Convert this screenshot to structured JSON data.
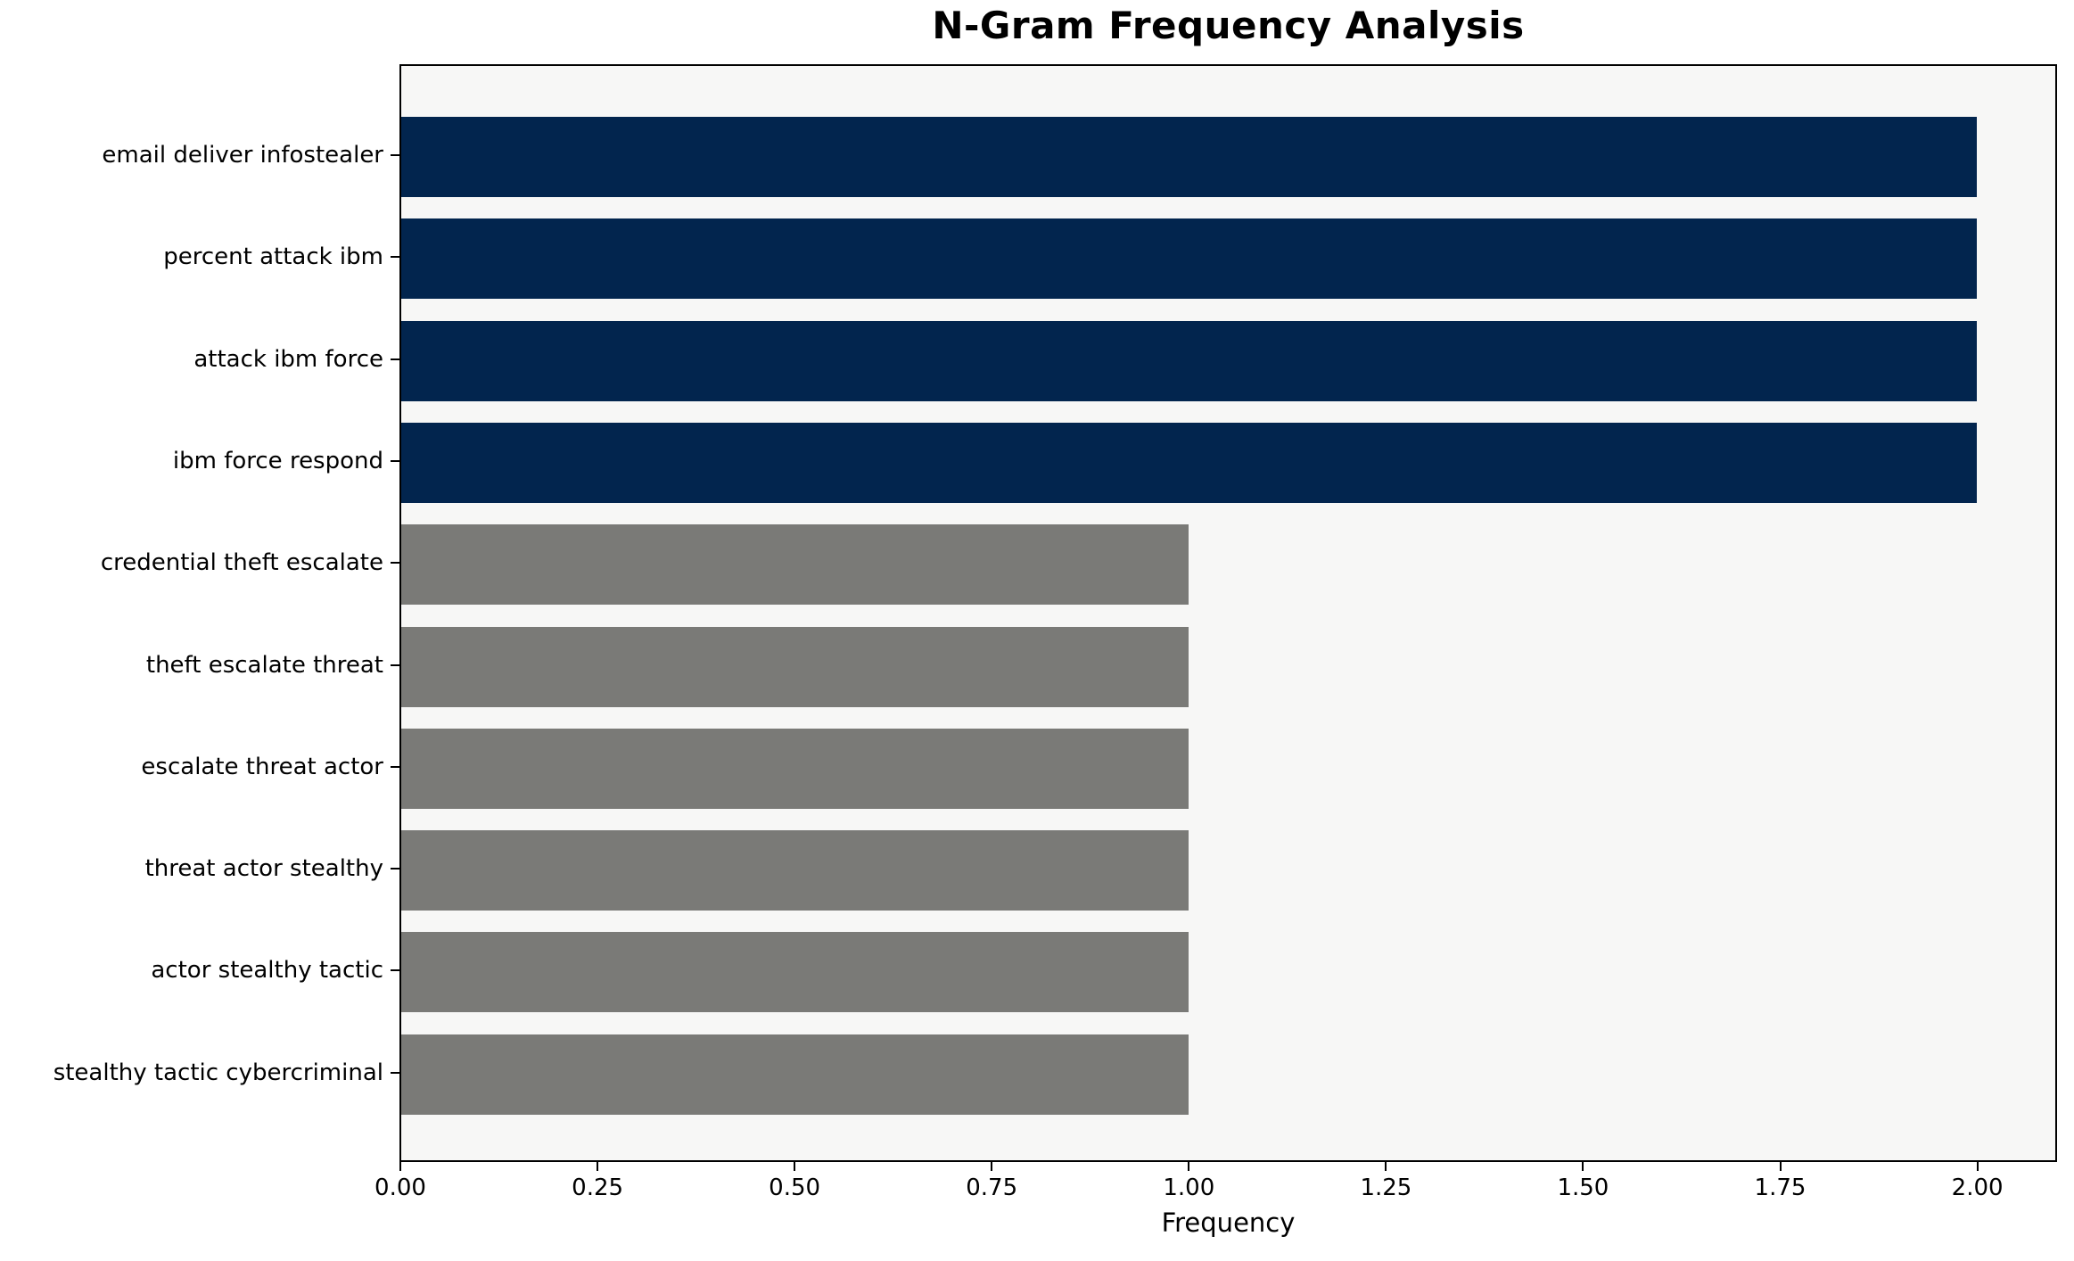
{
  "chart_data": {
    "type": "bar",
    "orientation": "horizontal",
    "title": "N-Gram Frequency Analysis",
    "xlabel": "Frequency",
    "ylabel": "",
    "categories": [
      "email deliver infostealer",
      "percent attack ibm",
      "attack ibm force",
      "ibm force respond",
      "credential theft escalate",
      "theft escalate threat",
      "escalate threat actor",
      "threat actor stealthy",
      "actor stealthy tactic",
      "stealthy tactic cybercriminal"
    ],
    "values": [
      2,
      2,
      2,
      2,
      1,
      1,
      1,
      1,
      1,
      1
    ],
    "bar_colors": [
      "#02254e",
      "#02254e",
      "#02254e",
      "#02254e",
      "#7a7a77",
      "#7a7a77",
      "#7a7a77",
      "#7a7a77",
      "#7a7a77",
      "#7a7a77"
    ],
    "xlim": [
      0,
      2.1
    ],
    "xticks": [
      0,
      0.25,
      0.5,
      0.75,
      1,
      1.25,
      1.5,
      1.75,
      2
    ],
    "xtick_labels": [
      "0.00",
      "0.25",
      "0.50",
      "0.75",
      "1.00",
      "1.25",
      "1.50",
      "1.75",
      "2.00"
    ],
    "grid": false,
    "legend": null,
    "colors": {
      "high_bar": "#02254e",
      "low_bar": "#7a7a77",
      "plot_background": "#f7f7f6",
      "figure_background": "#ffffff",
      "spine": "#000000",
      "text": "#000000"
    }
  }
}
